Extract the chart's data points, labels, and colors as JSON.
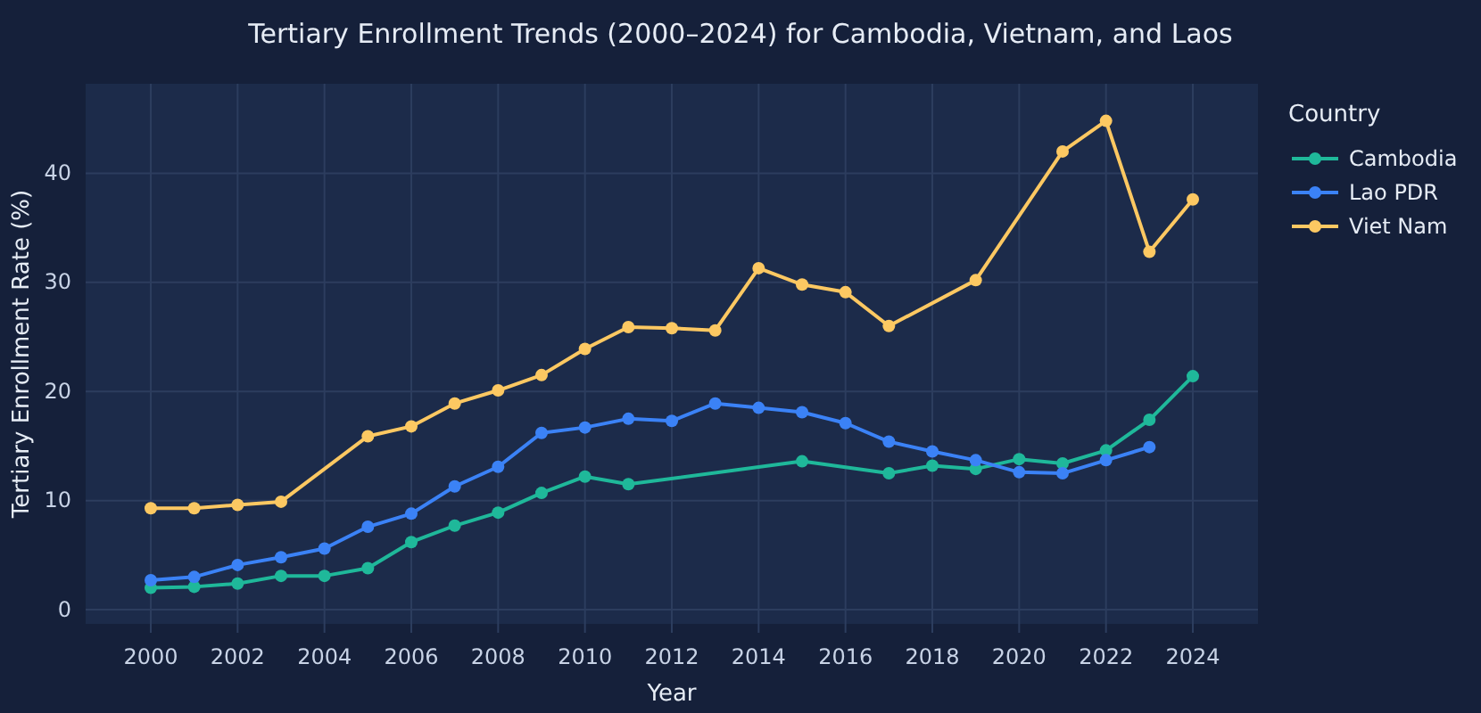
{
  "chart_data": {
    "type": "line",
    "title": "Tertiary Enrollment Trends (2000–2024) for Cambodia, Vietnam, and Laos",
    "xlabel": "Year",
    "ylabel": "Tertiary Enrollment Rate (%)",
    "legend_title": "Country",
    "legend": "right",
    "grid": true,
    "marker": "circle",
    "line_style": "solid",
    "xlim": [
      1998.5,
      2025.5
    ],
    "xticks": [
      2000,
      2002,
      2004,
      2006,
      2008,
      2010,
      2012,
      2014,
      2016,
      2018,
      2020,
      2022,
      2024
    ],
    "ylim": [
      -1.3,
      48.2
    ],
    "yticks": [
      0,
      10,
      20,
      30,
      40
    ],
    "series": [
      {
        "name": "Cambodia",
        "color": "#1fb89a",
        "x": [
          2000,
          2001,
          2002,
          2003,
          2004,
          2005,
          2006,
          2007,
          2008,
          2009,
          2010,
          2011,
          2015,
          2017,
          2018,
          2019,
          2020,
          2021,
          2022,
          2023,
          2024
        ],
        "values": [
          2.0,
          2.1,
          2.4,
          3.1,
          3.1,
          3.8,
          6.2,
          7.7,
          8.9,
          10.7,
          12.2,
          11.5,
          13.6,
          12.5,
          13.2,
          12.9,
          13.8,
          13.4,
          14.6,
          17.4,
          21.4
        ]
      },
      {
        "name": "Lao PDR",
        "color": "#3b82f6",
        "x": [
          2000,
          2001,
          2002,
          2003,
          2004,
          2005,
          2006,
          2007,
          2008,
          2009,
          2010,
          2011,
          2012,
          2013,
          2014,
          2015,
          2016,
          2017,
          2018,
          2019,
          2020,
          2021,
          2022,
          2023
        ],
        "values": [
          2.7,
          3.0,
          4.1,
          4.8,
          5.6,
          7.6,
          8.8,
          11.3,
          13.1,
          16.2,
          16.7,
          17.5,
          17.3,
          18.9,
          18.5,
          18.1,
          17.1,
          15.4,
          14.5,
          13.7,
          12.6,
          12.5,
          13.7,
          14.9
        ]
      },
      {
        "name": "Viet Nam",
        "color": "#fcc862",
        "x": [
          2000,
          2001,
          2002,
          2003,
          2005,
          2006,
          2007,
          2008,
          2009,
          2010,
          2011,
          2012,
          2013,
          2014,
          2015,
          2016,
          2017,
          2019,
          2021,
          2022,
          2023,
          2024
        ],
        "values": [
          9.3,
          9.3,
          9.6,
          9.9,
          15.9,
          16.8,
          18.9,
          20.1,
          21.5,
          23.9,
          25.9,
          25.8,
          25.6,
          31.3,
          29.8,
          29.1,
          26.0,
          30.2,
          42.0,
          44.8,
          32.8,
          37.6
        ]
      }
    ]
  }
}
